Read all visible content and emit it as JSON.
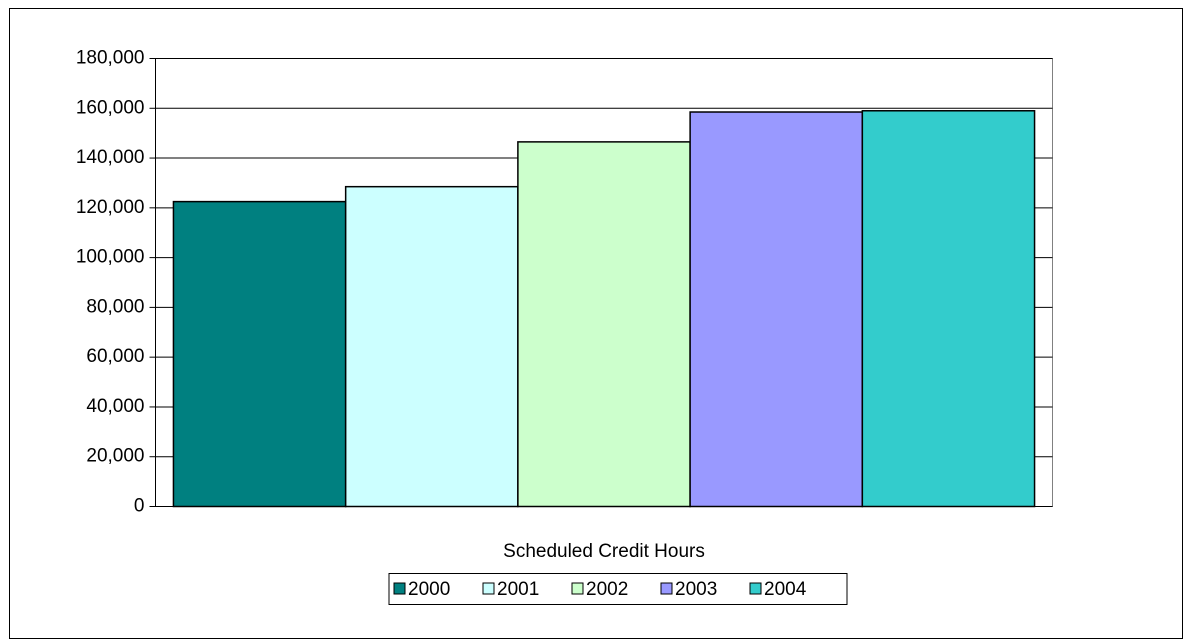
{
  "chart_data": {
    "type": "bar",
    "categories": [
      "Scheduled Credit Hours"
    ],
    "series": [
      {
        "name": "2000",
        "color": "#008080",
        "values": [
          122500
        ]
      },
      {
        "name": "2001",
        "color": "#CCFFFF",
        "values": [
          128500
        ]
      },
      {
        "name": "2002",
        "color": "#CCFFCC",
        "values": [
          146500
        ]
      },
      {
        "name": "2003",
        "color": "#9999FF",
        "values": [
          158500
        ]
      },
      {
        "name": "2004",
        "color": "#33CCCC",
        "values": [
          159000
        ]
      }
    ],
    "ylim": [
      0,
      180000
    ],
    "yticks": [
      0,
      {
        "value": 20000,
        "label": "20,000"
      },
      {
        "value": 40000,
        "label": "40,000"
      },
      {
        "value": 60000,
        "label": "60,000"
      },
      {
        "value": 80000,
        "label": "80,000"
      },
      {
        "value": 100000,
        "label": "100,000"
      },
      {
        "value": 120000,
        "label": "120,000"
      },
      {
        "value": 140000,
        "label": "140,000"
      },
      {
        "value": 160000,
        "label": "160,000"
      },
      {
        "value": 180000,
        "label": "180,000"
      }
    ],
    "grid": true,
    "legend": "bottom"
  }
}
